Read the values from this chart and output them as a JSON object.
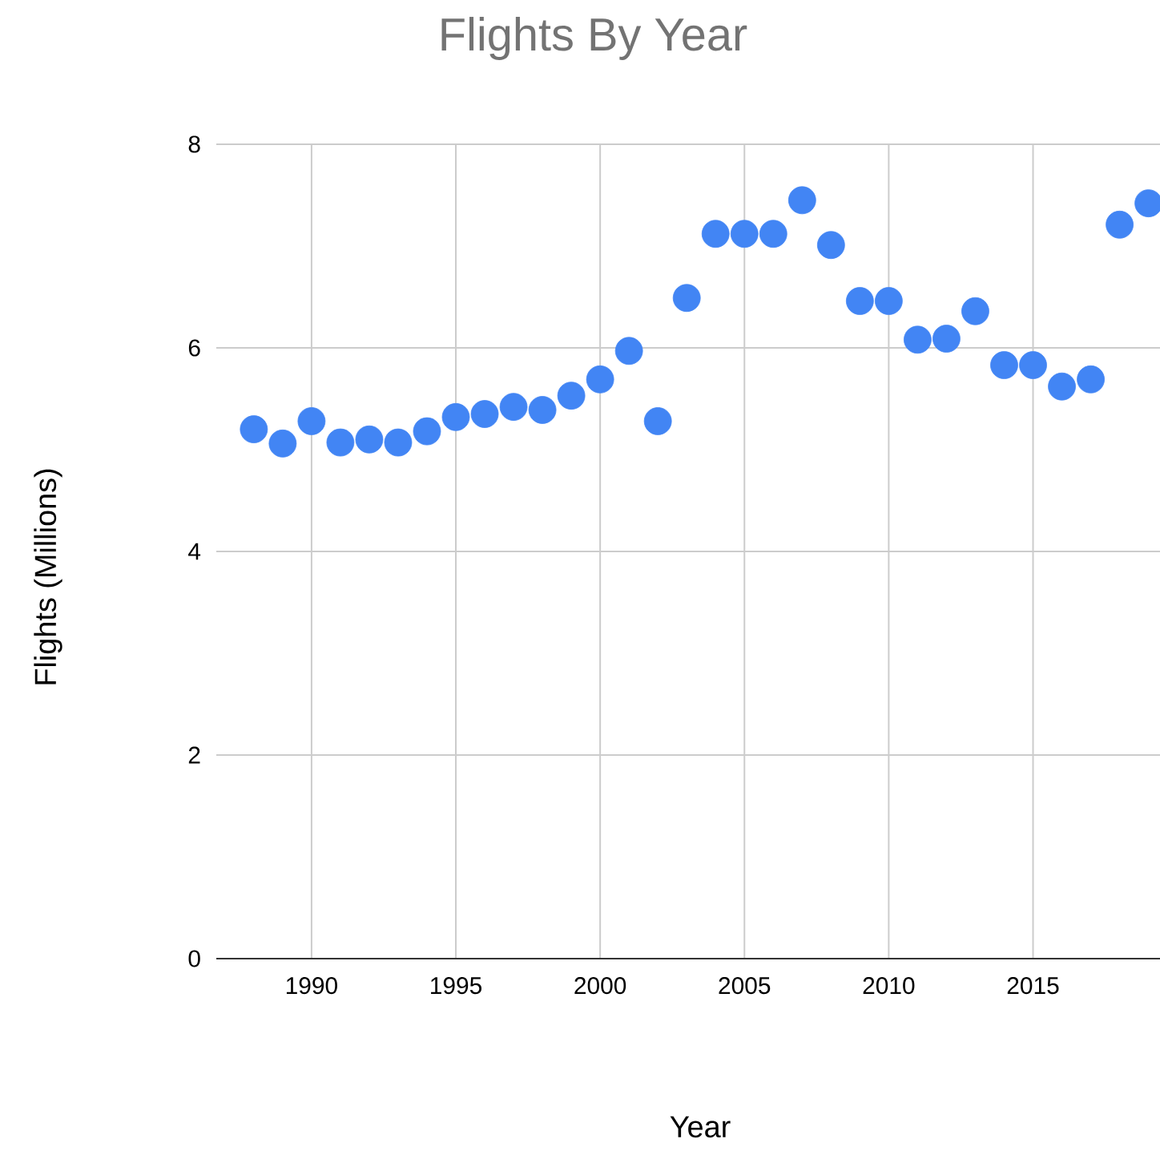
{
  "chart_data": {
    "type": "scatter",
    "title": "Flights By Year",
    "xlabel": "Year",
    "ylabel": "Flights (Millions)",
    "x": [
      1988,
      1989,
      1990,
      1991,
      1992,
      1993,
      1994,
      1995,
      1996,
      1997,
      1998,
      1999,
      2000,
      2001,
      2002,
      2003,
      2004,
      2005,
      2006,
      2007,
      2008,
      2009,
      2010,
      2011,
      2012,
      2013,
      2014,
      2015,
      2016,
      2017,
      2018,
      2019
    ],
    "values": [
      5.2,
      5.06,
      5.28,
      5.07,
      5.1,
      5.07,
      5.18,
      5.32,
      5.35,
      5.42,
      5.39,
      5.53,
      5.69,
      5.97,
      5.28,
      6.49,
      7.12,
      7.12,
      7.12,
      7.45,
      7.01,
      6.46,
      6.46,
      6.08,
      6.09,
      6.36,
      5.83,
      5.83,
      5.62,
      5.69,
      7.21,
      7.42
    ],
    "color": "#4285f4",
    "grid": true,
    "xlim": [
      1986.7,
      2019.4
    ],
    "xticks": [
      1990,
      1995,
      2000,
      2005,
      2010,
      2015
    ],
    "ylim": [
      0,
      8
    ],
    "yticks": [
      0,
      2,
      4,
      6,
      8
    ]
  }
}
